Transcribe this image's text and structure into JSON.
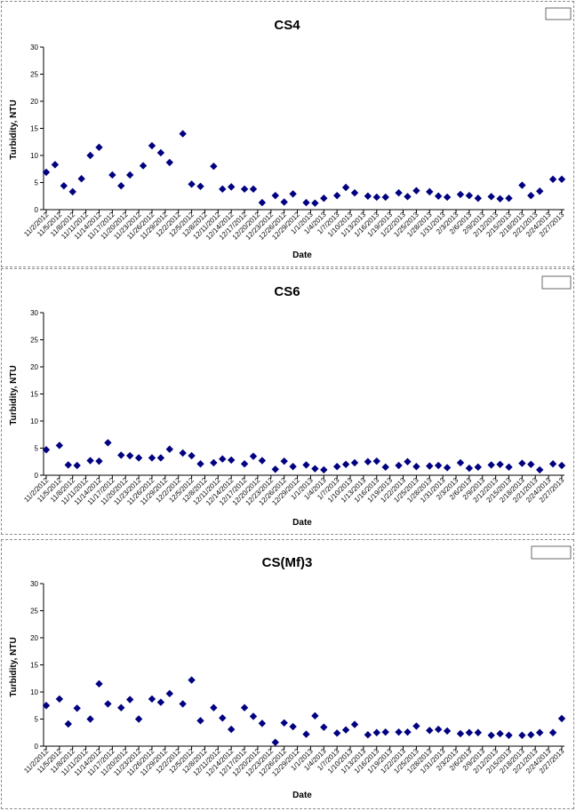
{
  "chart_data": [
    {
      "type": "scatter",
      "title": "CS4",
      "xlabel": "Date",
      "ylabel": "Turbidity, NTU",
      "ylim": [
        0,
        30
      ],
      "yticks": [
        0,
        5,
        10,
        15,
        20,
        25,
        30
      ],
      "grid": false,
      "legend": "top-right",
      "marker_color": "#000080",
      "xtick_labels": [
        "11/2/2012",
        "11/5/2012",
        "11/8/2012",
        "11/11/2012",
        "11/14/2012",
        "11/17/2012",
        "11/20/2012",
        "11/23/2012",
        "11/26/2012",
        "11/29/2012",
        "12/2/2012",
        "12/5/2012",
        "12/8/2012",
        "12/11/2012",
        "12/14/2012",
        "12/17/2012",
        "12/20/2012",
        "12/23/2012",
        "12/26/2012",
        "12/29/2012",
        "1/1/2013",
        "1/4/2013",
        "1/7/2013",
        "1/10/2013",
        "1/13/2013",
        "1/16/2013",
        "1/19/2013",
        "1/22/2013",
        "1/25/2013",
        "1/28/2013",
        "1/31/2013",
        "2/3/2013",
        "2/6/2013",
        "2/9/2013",
        "2/12/2013",
        "2/15/2013",
        "2/18/2013",
        "2/21/2013",
        "2/24/2013",
        "2/27/2013"
      ],
      "x": [
        "11/2/2012",
        "11/4/2012",
        "11/6/2012",
        "11/8/2012",
        "11/10/2012",
        "11/12/2012",
        "11/14/2012",
        "11/17/2012",
        "11/19/2012",
        "11/21/2012",
        "11/24/2012",
        "11/26/2012",
        "11/28/2012",
        "11/30/2012",
        "12/3/2012",
        "12/5/2012",
        "12/7/2012",
        "12/10/2012",
        "12/12/2012",
        "12/14/2012",
        "12/17/2012",
        "12/19/2012",
        "12/21/2012",
        "12/24/2012",
        "12/26/2012",
        "12/28/2012",
        "12/31/2012",
        "1/2/2013",
        "1/4/2013",
        "1/7/2013",
        "1/9/2013",
        "1/11/2013",
        "1/14/2013",
        "1/16/2013",
        "1/18/2013",
        "1/21/2013",
        "1/23/2013",
        "1/25/2013",
        "1/28/2013",
        "1/30/2013",
        "2/1/2013",
        "2/4/2013",
        "2/6/2013",
        "2/8/2013",
        "2/11/2013",
        "2/13/2013",
        "2/15/2013",
        "2/18/2013",
        "2/20/2013",
        "2/22/2013",
        "2/25/2013",
        "2/27/2013"
      ],
      "y": [
        6.9,
        8.3,
        4.4,
        3.3,
        5.7,
        10.0,
        11.5,
        6.4,
        4.4,
        6.4,
        8.1,
        11.8,
        10.5,
        8.7,
        14.0,
        4.7,
        4.3,
        8.0,
        3.8,
        4.2,
        3.8,
        3.8,
        1.3,
        2.6,
        1.4,
        2.9,
        1.3,
        1.2,
        2.1,
        2.6,
        4.1,
        3.1,
        2.5,
        2.3,
        2.3,
        3.1,
        2.4,
        3.5,
        3.3,
        2.5,
        2.3,
        2.8,
        2.6,
        2.1,
        2.4,
        2.0,
        2.1,
        4.5,
        2.6,
        3.4,
        5.6,
        5.6
      ]
    },
    {
      "type": "scatter",
      "title": "CS6",
      "xlabel": "Date",
      "ylabel": "Turbidity, NTU",
      "ylim": [
        0,
        30
      ],
      "yticks": [
        0,
        5,
        10,
        15,
        20,
        25,
        30
      ],
      "grid": false,
      "legend": "top-right",
      "marker_color": "#000080",
      "xtick_labels": [
        "11/2/2012",
        "11/5/2012",
        "11/8/2012",
        "11/11/2012",
        "11/14/2012",
        "11/17/2012",
        "11/20/2012",
        "11/23/2012",
        "11/26/2012",
        "11/29/2012",
        "12/2/2012",
        "12/5/2012",
        "12/8/2012",
        "12/11/2012",
        "12/14/2012",
        "12/17/2012",
        "12/20/2012",
        "12/23/2012",
        "12/26/2012",
        "12/29/2012",
        "1/1/2013",
        "1/4/2013",
        "1/7/2013",
        "1/10/2013",
        "1/13/2013",
        "1/16/2013",
        "1/19/2013",
        "1/22/2013",
        "1/25/2013",
        "1/28/2013",
        "1/31/2013",
        "2/3/2013",
        "2/6/2013",
        "2/9/2013",
        "2/12/2013",
        "2/15/2013",
        "2/18/2013",
        "2/21/2013",
        "2/24/2013",
        "2/27/2013"
      ],
      "x": [
        "11/2/2012",
        "11/5/2012",
        "11/7/2012",
        "11/9/2012",
        "11/12/2012",
        "11/14/2012",
        "11/16/2012",
        "11/19/2012",
        "11/21/2012",
        "11/23/2012",
        "11/26/2012",
        "11/28/2012",
        "11/30/2012",
        "12/3/2012",
        "12/5/2012",
        "12/7/2012",
        "12/10/2012",
        "12/12/2012",
        "12/14/2012",
        "12/17/2012",
        "12/19/2012",
        "12/21/2012",
        "12/24/2012",
        "12/26/2012",
        "12/28/2012",
        "12/31/2012",
        "1/2/2013",
        "1/4/2013",
        "1/7/2013",
        "1/9/2013",
        "1/11/2013",
        "1/14/2013",
        "1/16/2013",
        "1/18/2013",
        "1/21/2013",
        "1/23/2013",
        "1/25/2013",
        "1/28/2013",
        "1/30/2013",
        "2/1/2013",
        "2/4/2013",
        "2/6/2013",
        "2/8/2013",
        "2/11/2013",
        "2/13/2013",
        "2/15/2013",
        "2/18/2013",
        "2/20/2013",
        "2/22/2013",
        "2/25/2013",
        "2/27/2013"
      ],
      "y": [
        4.7,
        5.5,
        1.9,
        1.8,
        2.7,
        2.6,
        6.0,
        3.7,
        3.6,
        3.2,
        3.2,
        3.2,
        4.8,
        4.1,
        3.6,
        2.1,
        2.3,
        3.0,
        2.8,
        2.1,
        3.5,
        2.7,
        1.1,
        2.6,
        1.6,
        1.9,
        1.2,
        1.0,
        1.6,
        2.0,
        2.3,
        2.5,
        2.6,
        1.5,
        1.8,
        2.5,
        1.6,
        1.7,
        1.8,
        1.4,
        2.3,
        1.3,
        1.5,
        1.9,
        2.0,
        1.5,
        2.2,
        2.0,
        1.0,
        2.1,
        1.8
      ]
    },
    {
      "type": "scatter",
      "title": "CS(Mf)3",
      "xlabel": "Date",
      "ylabel": "Turbidity, NTU",
      "ylim": [
        0,
        30
      ],
      "yticks": [
        0,
        5,
        10,
        15,
        20,
        25,
        30
      ],
      "grid": false,
      "legend": "top-right",
      "marker_color": "#000080",
      "xtick_labels": [
        "11/2/2012",
        "11/5/2012",
        "11/8/2012",
        "11/11/2012",
        "11/14/2012",
        "11/17/2012",
        "11/20/2012",
        "11/23/2012",
        "11/26/2012",
        "11/29/2012",
        "12/2/2012",
        "12/5/2012",
        "12/8/2012",
        "12/11/2012",
        "12/14/2012",
        "12/17/2012",
        "12/20/2012",
        "12/23/2012",
        "12/26/2012",
        "12/29/2012",
        "1/1/2013",
        "1/4/2013",
        "1/7/2013",
        "1/10/2013",
        "1/13/2013",
        "1/16/2013",
        "1/19/2013",
        "1/22/2013",
        "1/25/2013",
        "1/28/2013",
        "1/31/2013",
        "2/3/2013",
        "2/6/2013",
        "2/9/2013",
        "2/12/2013",
        "2/15/2013",
        "2/18/2013",
        "2/21/2013",
        "2/24/2013",
        "2/27/2013"
      ],
      "x": [
        "11/2/2012",
        "11/5/2012",
        "11/7/2012",
        "11/9/2012",
        "11/12/2012",
        "11/14/2012",
        "11/16/2012",
        "11/19/2012",
        "11/21/2012",
        "11/23/2012",
        "11/26/2012",
        "11/28/2012",
        "11/30/2012",
        "12/3/2012",
        "12/5/2012",
        "12/7/2012",
        "12/10/2012",
        "12/12/2012",
        "12/14/2012",
        "12/17/2012",
        "12/19/2012",
        "12/21/2012",
        "12/24/2012",
        "12/26/2012",
        "12/28/2012",
        "12/31/2012",
        "1/2/2013",
        "1/4/2013",
        "1/7/2013",
        "1/9/2013",
        "1/11/2013",
        "1/14/2013",
        "1/16/2013",
        "1/18/2013",
        "1/21/2013",
        "1/23/2013",
        "1/25/2013",
        "1/28/2013",
        "1/30/2013",
        "2/1/2013",
        "2/4/2013",
        "2/6/2013",
        "2/8/2013",
        "2/11/2013",
        "2/13/2013",
        "2/15/2013",
        "2/18/2013",
        "2/20/2013",
        "2/22/2013",
        "2/25/2013",
        "2/27/2013"
      ],
      "y": [
        7.5,
        8.7,
        4.1,
        7.0,
        5.0,
        11.5,
        7.8,
        7.1,
        8.6,
        5.0,
        8.7,
        8.1,
        9.7,
        7.8,
        12.2,
        4.7,
        7.1,
        5.2,
        3.1,
        7.1,
        5.5,
        4.2,
        0.7,
        4.3,
        3.6,
        2.2,
        5.6,
        3.5,
        2.4,
        3.0,
        4.0,
        2.1,
        2.5,
        2.6,
        2.6,
        2.6,
        3.7,
        2.9,
        3.1,
        2.8,
        2.3,
        2.5,
        2.5,
        2.0,
        2.3,
        2.0,
        2.0,
        2.1,
        2.5,
        2.5,
        5.1
      ]
    }
  ]
}
